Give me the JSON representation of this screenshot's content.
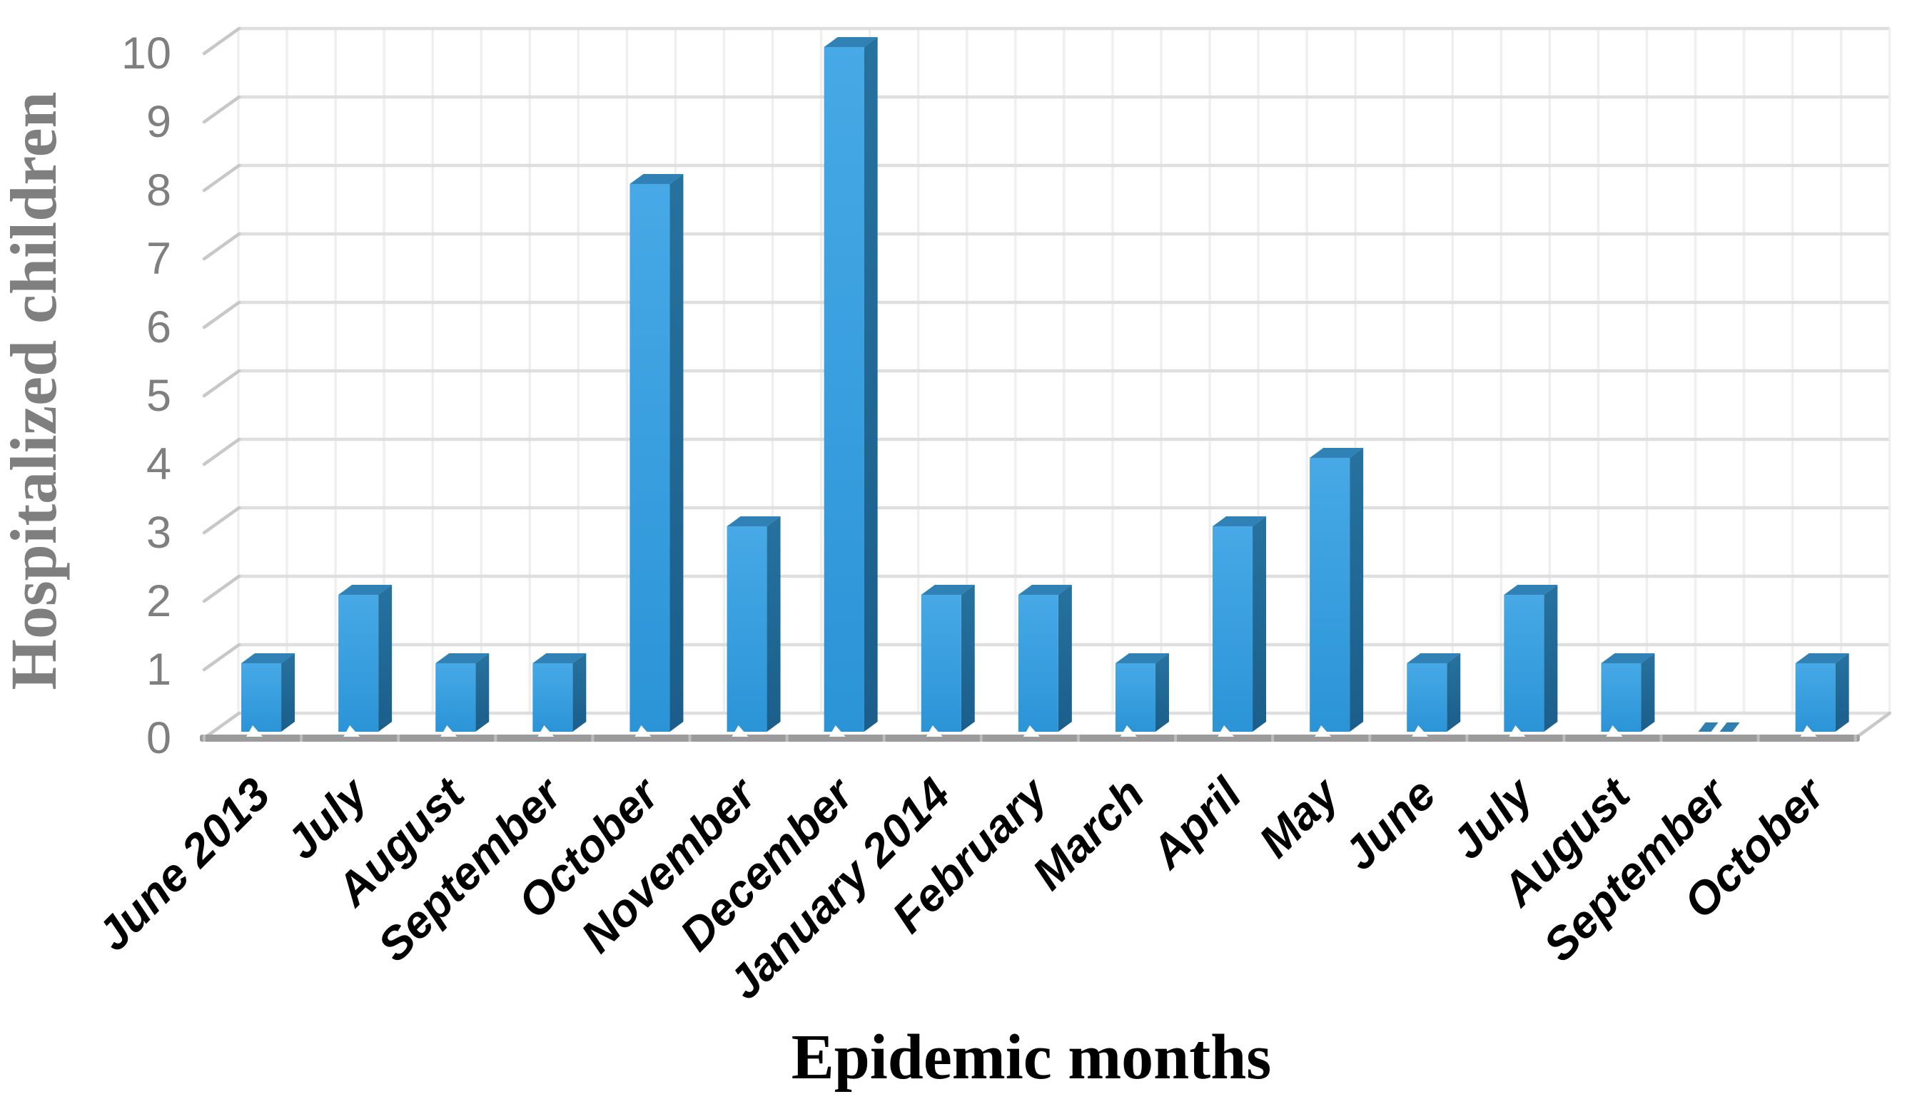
{
  "chart_data": {
    "type": "bar",
    "style": "3d-column",
    "title": "",
    "xlabel": "Epidemic months",
    "ylabel": "Hospitalized children",
    "categories": [
      "June 2013",
      "July",
      "August",
      "September",
      "October",
      "November",
      "December",
      "January 2014",
      "February",
      "March",
      "April",
      "May",
      "June",
      "July",
      "August",
      "September",
      "October"
    ],
    "values": [
      1,
      2,
      1,
      1,
      8,
      3,
      10,
      2,
      2,
      1,
      3,
      4,
      1,
      2,
      1,
      0,
      1
    ],
    "ylim": [
      0,
      10
    ],
    "ytick_step": 1,
    "yticks": [
      0,
      1,
      2,
      3,
      4,
      5,
      6,
      7,
      8,
      9,
      10
    ],
    "grid": true,
    "legend": false,
    "category_label_rotation_deg": 45,
    "colors": {
      "background": "#FFFFFF",
      "bar_front_top": "#47A9E6",
      "bar_front_bottom": "#2B94D7",
      "bar_top_face": "#2F81B6",
      "bar_side_top": "#26729F",
      "bar_side_bottom": "#1B5E8B",
      "zero_bar_mark": "#2F7FB0",
      "h_gridline": "#DEDEDE",
      "v_gridline": "#EFEFEF",
      "bevel": "#C8C8C8",
      "baseline": "#9B9B9B",
      "baseline_tick": "#BDBDBD",
      "tick_label": "#7F7F7F",
      "y_axis_title": "#7F7F7F",
      "x_axis_title": "#000000",
      "category_label": "#000000"
    }
  }
}
